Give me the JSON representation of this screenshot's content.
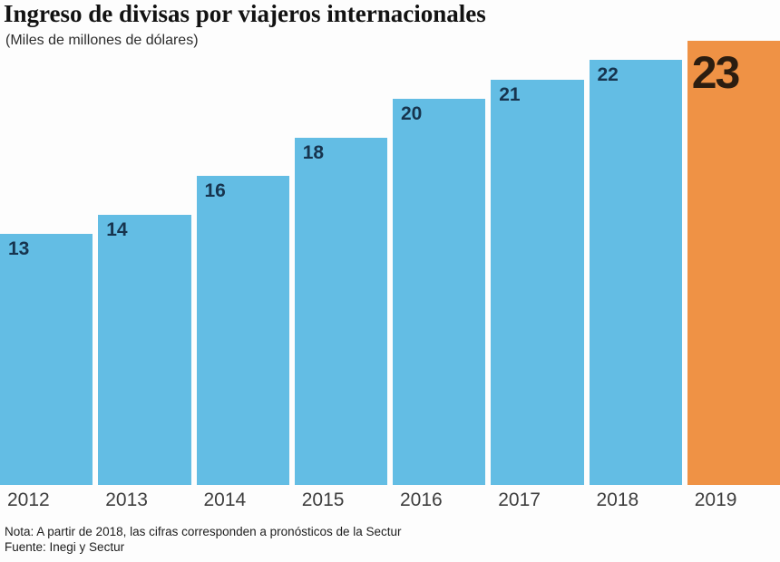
{
  "chart_data": {
    "type": "bar",
    "title": "Ingreso de divisas por viajeros internacionales",
    "subtitle": "(Miles de millones de dólares)",
    "categories": [
      "2012",
      "2013",
      "2014",
      "2015",
      "2016",
      "2017",
      "2018",
      "2019"
    ],
    "values": [
      13,
      14,
      16,
      18,
      20,
      21,
      22,
      23
    ],
    "ylim": [
      0,
      23
    ],
    "highlight_index": 7,
    "colors": {
      "bar": "#63bde4",
      "highlight": "#ef9245",
      "value_label": "#17344e",
      "highlight_value_label": "#2b1d10",
      "year_label": "#3e3e3e"
    },
    "legend": "none",
    "grid": false,
    "note": "Nota: A partir de 2018, las cifras corresponden a pronósticos de la Sectur",
    "source": "Fuente: Inegi y Sectur"
  }
}
